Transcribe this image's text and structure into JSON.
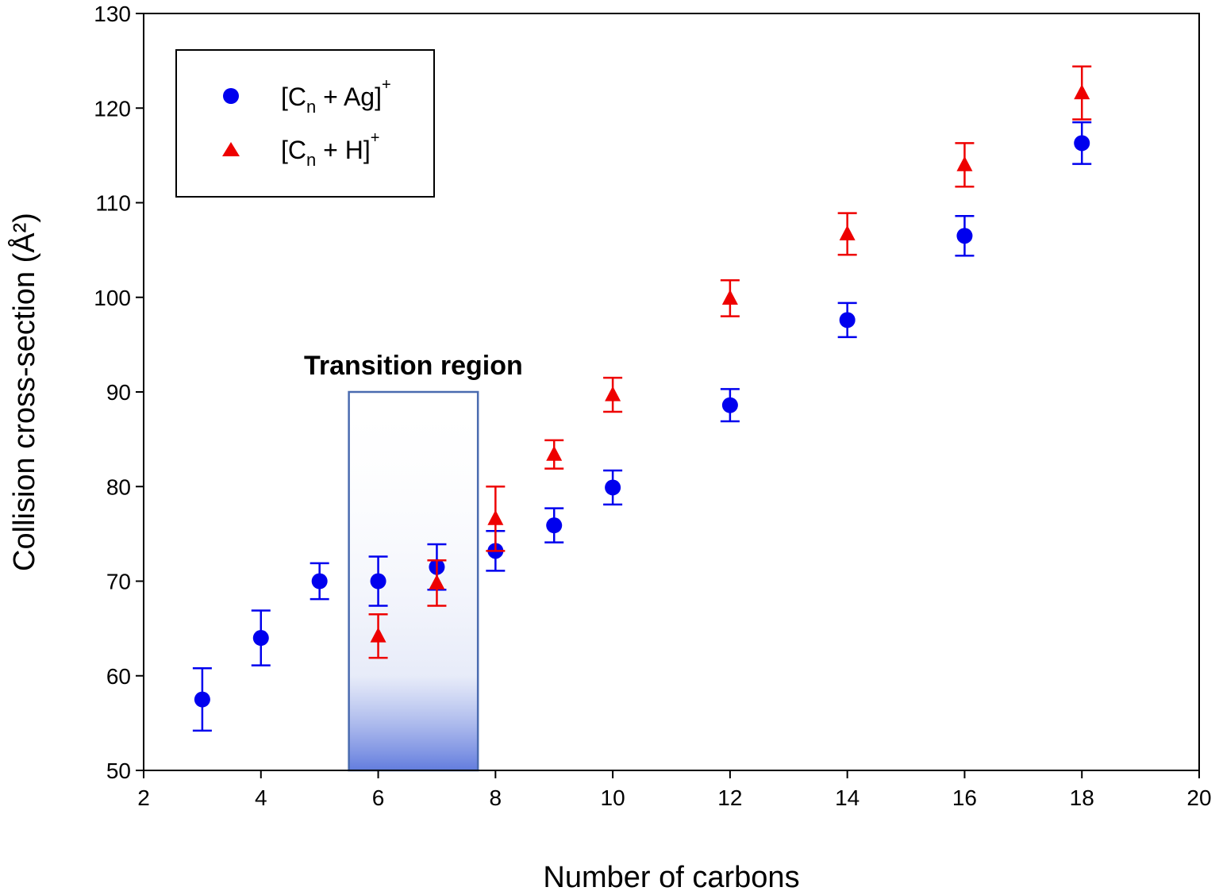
{
  "chart_data": {
    "type": "scatter",
    "xlabel": "Number of carbons",
    "ylabel": "Collision cross-section (Å²)",
    "xlim": [
      2,
      20
    ],
    "ylim": [
      50,
      130
    ],
    "xticks": [
      "2",
      "4",
      "6",
      "8",
      "10",
      "12",
      "14",
      "16",
      "18",
      "20"
    ],
    "yticks": [
      "50",
      "60",
      "70",
      "80",
      "90",
      "100",
      "110",
      "120",
      "130"
    ],
    "legend_position": "top-left",
    "series": [
      {
        "name": "[Cn + Ag]+",
        "legend_base": "[C",
        "legend_sub": "n",
        "legend_mid": " + Ag]",
        "legend_sup": "+",
        "marker": "circle",
        "color": "#0000ee",
        "points": [
          {
            "x": 3,
            "y": 57.5,
            "err": 3.3
          },
          {
            "x": 4,
            "y": 64.0,
            "err": 2.9
          },
          {
            "x": 5,
            "y": 70.0,
            "err": 1.9
          },
          {
            "x": 6,
            "y": 70.0,
            "err": 2.6
          },
          {
            "x": 7,
            "y": 71.5,
            "err": 2.4
          },
          {
            "x": 8,
            "y": 73.2,
            "err": 2.1
          },
          {
            "x": 9,
            "y": 75.9,
            "err": 1.8
          },
          {
            "x": 10,
            "y": 79.9,
            "err": 1.8
          },
          {
            "x": 12,
            "y": 88.6,
            "err": 1.7
          },
          {
            "x": 14,
            "y": 97.6,
            "err": 1.8
          },
          {
            "x": 16,
            "y": 106.5,
            "err": 2.1
          },
          {
            "x": 18,
            "y": 116.3,
            "err": 2.2
          }
        ]
      },
      {
        "name": "[Cn + H]+",
        "legend_base": "[C",
        "legend_sub": "n",
        "legend_mid": " + H]",
        "legend_sup": "+",
        "marker": "triangle",
        "color": "#ee0000",
        "points": [
          {
            "x": 6,
            "y": 64.2,
            "err": 2.3
          },
          {
            "x": 7,
            "y": 69.8,
            "err": 2.4
          },
          {
            "x": 8,
            "y": 76.6,
            "err": 3.4
          },
          {
            "x": 9,
            "y": 83.4,
            "err": 1.5
          },
          {
            "x": 10,
            "y": 89.7,
            "err": 1.8
          },
          {
            "x": 12,
            "y": 99.9,
            "err": 1.9
          },
          {
            "x": 14,
            "y": 106.7,
            "err": 2.2
          },
          {
            "x": 16,
            "y": 114.0,
            "err": 2.3
          },
          {
            "x": 18,
            "y": 121.6,
            "err": 2.8
          }
        ]
      }
    ],
    "annotations": [
      {
        "text": "Transition region",
        "x_range": [
          5.5,
          7.7
        ],
        "y_range": [
          50,
          90
        ],
        "color": "#4a6bb0"
      }
    ]
  }
}
